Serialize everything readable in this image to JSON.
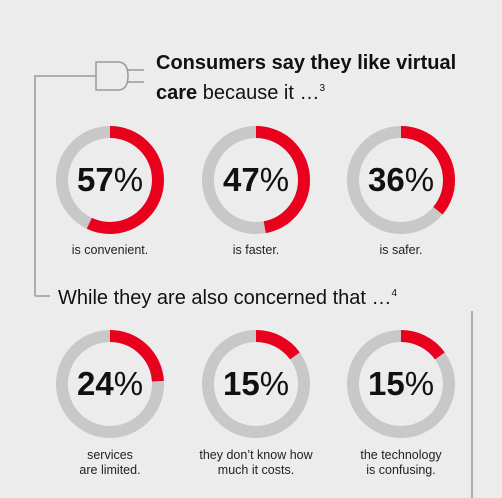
{
  "heading_top": {
    "bold_text": "Consumers say they like virtual care",
    "rest_text": "because it …",
    "footnote": "3"
  },
  "heading_bottom": {
    "text": "While they are also concerned that …",
    "footnote": "4"
  },
  "colors": {
    "accent": "#e8001c",
    "track": "#c8c8c8",
    "background": "#ececec",
    "line": "#9a9a9a"
  },
  "chart_data": [
    {
      "type": "pie",
      "group": "likes",
      "categories": [
        "is convenient.",
        "is faster.",
        "is safer."
      ],
      "values": [
        57,
        47,
        36
      ],
      "unit": "%"
    },
    {
      "type": "pie",
      "group": "concerns",
      "categories": [
        "services are limited.",
        "they don’t know how much it costs.",
        "the technology is confusing."
      ],
      "values": [
        24,
        15,
        15
      ],
      "unit": "%"
    }
  ],
  "stats": [
    {
      "number": "57",
      "percent": "%",
      "caption_line1": "is convenient.",
      "caption_line2": ""
    },
    {
      "number": "47",
      "percent": "%",
      "caption_line1": "is faster.",
      "caption_line2": ""
    },
    {
      "number": "36",
      "percent": "%",
      "caption_line1": "is safer.",
      "caption_line2": ""
    },
    {
      "number": "24",
      "percent": "%",
      "caption_line1": "services",
      "caption_line2": "are limited."
    },
    {
      "number": "15",
      "percent": "%",
      "caption_line1": "they don’t know how",
      "caption_line2": "much it costs."
    },
    {
      "number": "15",
      "percent": "%",
      "caption_line1": "the technology",
      "caption_line2": "is confusing."
    }
  ]
}
